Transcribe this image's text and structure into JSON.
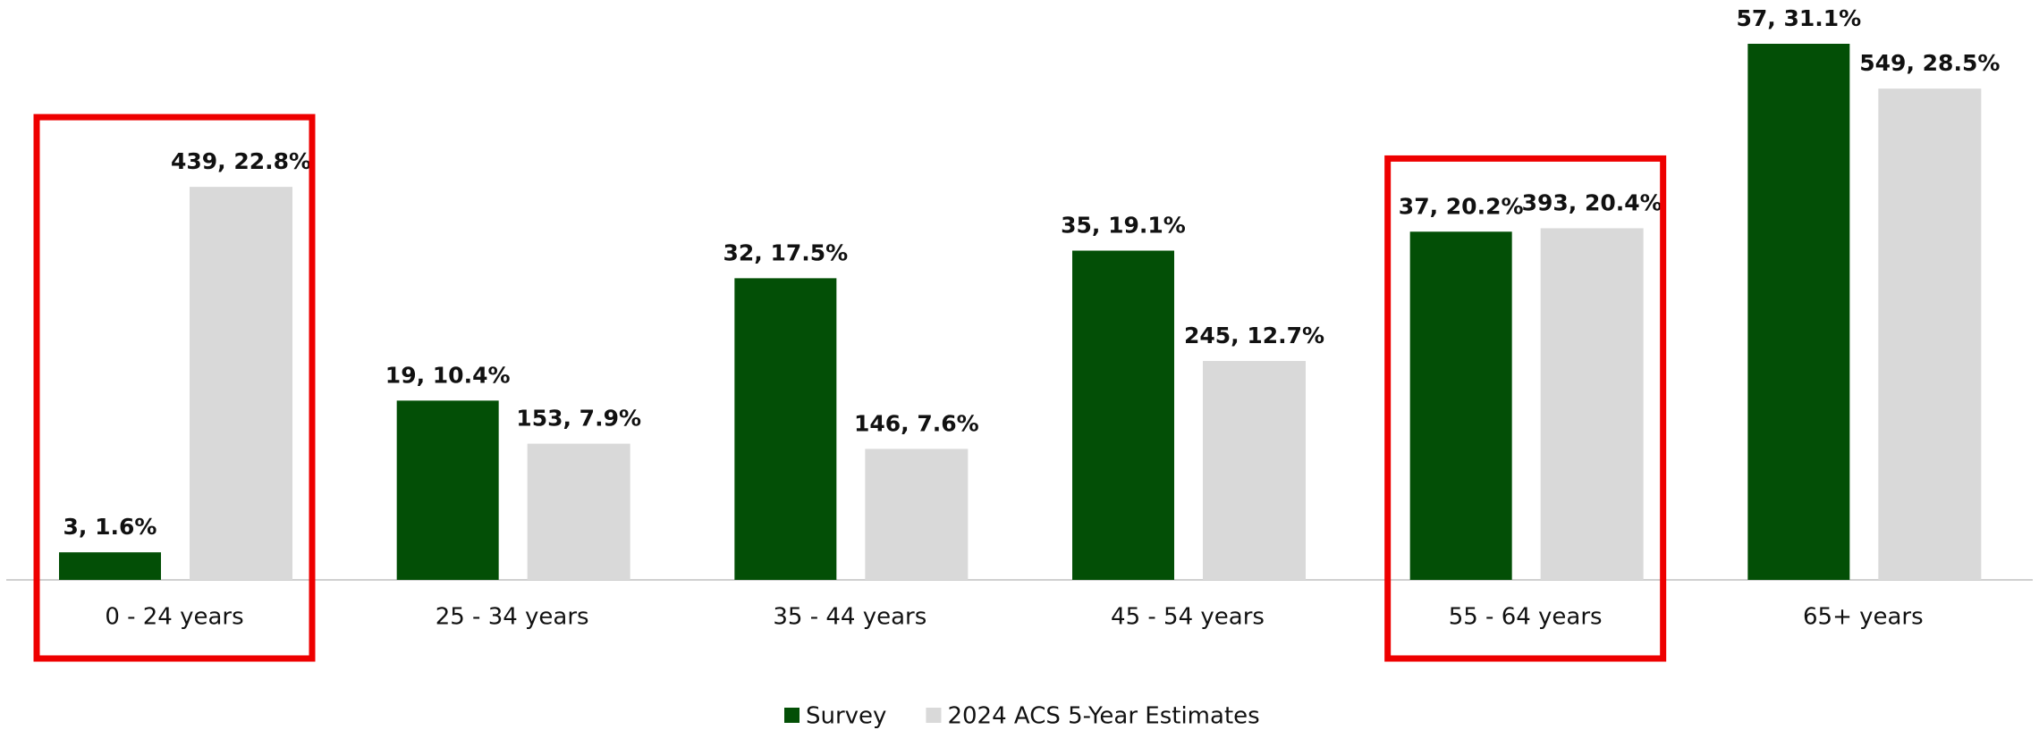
{
  "chart_data": {
    "type": "bar",
    "categories": [
      "0 - 24 years",
      "25 - 34 years",
      "35 - 44 years",
      "45 - 54 years",
      "55 - 64 years",
      "65+ years"
    ],
    "series": [
      {
        "name": "Survey",
        "color": "#034f06",
        "values": [
          1.6,
          10.4,
          17.5,
          19.1,
          20.2,
          31.1
        ],
        "value_labels": [
          "3, 1.6%",
          "19, 10.4%",
          "32, 17.5%",
          "35, 19.1%",
          "37, 20.2%",
          "57, 31.1%"
        ]
      },
      {
        "name": "2024 ACS 5-Year Estimates",
        "color": "#d9d9d9",
        "values": [
          22.8,
          7.9,
          7.6,
          12.7,
          20.4,
          28.5
        ],
        "value_labels": [
          "439, 22.8%",
          "153, 7.9%",
          "146, 7.6%",
          "245, 12.7%",
          "393, 20.4%",
          "549, 28.5%"
        ]
      }
    ],
    "highlighted_categories": [
      0,
      4
    ],
    "highlight_color": "#ee0000",
    "legend": "bottom"
  }
}
